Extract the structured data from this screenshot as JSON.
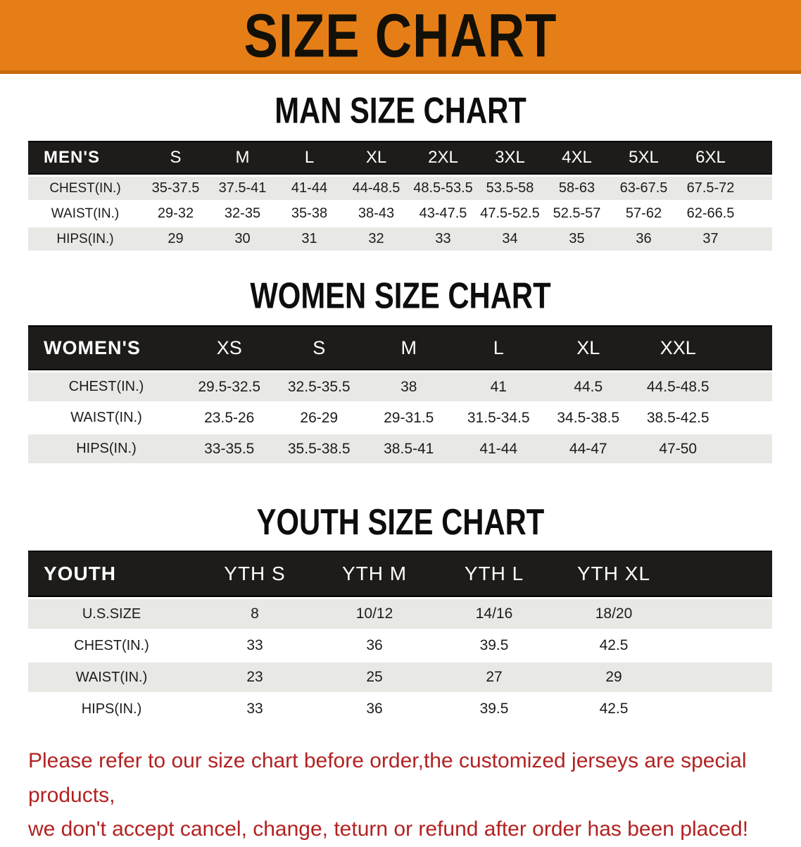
{
  "banner": {
    "title": "SIZE CHART",
    "bg_color": "#E67E17",
    "text_color": "#131008"
  },
  "men": {
    "heading": "MAN SIZE CHART",
    "corner": "MEN'S",
    "sizes": [
      "S",
      "M",
      "L",
      "XL",
      "2XL",
      "3XL",
      "4XL",
      "5XL",
      "6XL"
    ],
    "rows": [
      {
        "label": "CHEST(IN.)",
        "values": [
          "35-37.5",
          "37.5-41",
          "41-44",
          "44-48.5",
          "48.5-53.5",
          "53.5-58",
          "58-63",
          "63-67.5",
          "67.5-72"
        ]
      },
      {
        "label": "WAIST(IN.)",
        "values": [
          "29-32",
          "32-35",
          "35-38",
          "38-43",
          "43-47.5",
          "47.5-52.5",
          "52.5-57",
          "57-62",
          "62-66.5"
        ]
      },
      {
        "label": "HIPS(IN.)",
        "values": [
          "29",
          "30",
          "31",
          "32",
          "33",
          "34",
          "35",
          "36",
          "37"
        ]
      }
    ]
  },
  "women": {
    "heading": "WOMEN SIZE CHART",
    "corner": "WOMEN'S",
    "sizes": [
      "XS",
      "S",
      "M",
      "L",
      "XL",
      "XXL"
    ],
    "rows": [
      {
        "label": "CHEST(IN.)",
        "values": [
          "29.5-32.5",
          "32.5-35.5",
          "38",
          "41",
          "44.5",
          "44.5-48.5"
        ]
      },
      {
        "label": "WAIST(IN.)",
        "values": [
          "23.5-26",
          "26-29",
          "29-31.5",
          "31.5-34.5",
          "34.5-38.5",
          "38.5-42.5"
        ]
      },
      {
        "label": "HIPS(IN.)",
        "values": [
          "33-35.5",
          "35.5-38.5",
          "38.5-41",
          "41-44",
          "44-47",
          "47-50"
        ]
      }
    ]
  },
  "youth": {
    "heading": "YOUTH SIZE CHART",
    "corner": "YOUTH",
    "sizes": [
      "YTH S",
      "YTH M",
      "YTH L",
      "YTH XL"
    ],
    "rows": [
      {
        "label": "U.S.SIZE",
        "values": [
          "8",
          "10/12",
          "14/16",
          "18/20"
        ]
      },
      {
        "label": "CHEST(IN.)",
        "values": [
          "33",
          "36",
          "39.5",
          "42.5"
        ]
      },
      {
        "label": "WAIST(IN.)",
        "values": [
          "23",
          "25",
          "27",
          "29"
        ]
      },
      {
        "label": "HIPS(IN.)",
        "values": [
          "33",
          "36",
          "39.5",
          "42.5"
        ]
      }
    ]
  },
  "disclaimer": {
    "line1": "Please refer to our size chart before order,the customized jerseys are special products,",
    "line2": "we don't accept cancel, change, teturn or refund after order has been placed!",
    "text_color": "#B22222"
  },
  "colors": {
    "band_black": "#1d1c1a",
    "stripe_gray": "#E8E8E5",
    "banner_orange": "#E67E17",
    "disclaimer_red": "#B22222"
  }
}
